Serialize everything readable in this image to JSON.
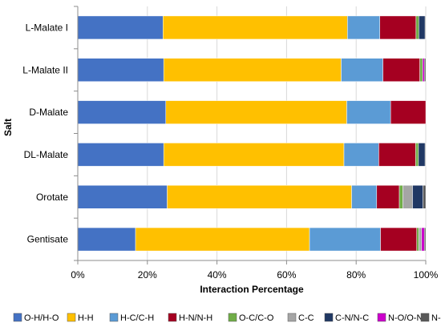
{
  "chart_data": {
    "type": "bar",
    "orientation": "horizontal",
    "stacked": true,
    "xlabel": "Interaction Percentage",
    "ylabel": "Salt",
    "xlim": [
      0,
      100
    ],
    "x_ticks": [
      "0%",
      "20%",
      "40%",
      "60%",
      "80%",
      "100%"
    ],
    "grid": "vertical",
    "legend_position": "bottom",
    "categories": [
      "L-Malate I",
      "L-Malate II",
      "D-Malate",
      "DL-Malate",
      "Orotate",
      "Gentisate"
    ],
    "series": [
      {
        "name": "O-H/H-O",
        "color": "#4472C4",
        "values": [
          24.5,
          24.7,
          25.3,
          24.7,
          25.7,
          16.6
        ]
      },
      {
        "name": "H-H",
        "color": "#FFC000",
        "values": [
          53.0,
          51.0,
          52.0,
          51.8,
          53.0,
          50.0
        ]
      },
      {
        "name": "H-C/C-H",
        "color": "#5B9BD5",
        "values": [
          9.3,
          12.0,
          12.6,
          10.0,
          7.2,
          20.4
        ]
      },
      {
        "name": "H-N/N-H",
        "color": "#A50021",
        "values": [
          10.4,
          10.6,
          10.1,
          10.6,
          6.5,
          10.4
        ]
      },
      {
        "name": "O-C/C-O",
        "color": "#70AD47",
        "values": [
          0.8,
          0.8,
          0.0,
          0.8,
          1.0,
          0.6
        ]
      },
      {
        "name": "C-C",
        "color": "#A5A5A5",
        "values": [
          0.0,
          0.0,
          0.0,
          0.0,
          2.8,
          0.8
        ]
      },
      {
        "name": "C-N/N-C",
        "color": "#203864",
        "values": [
          1.8,
          0.0,
          0.0,
          1.9,
          3.0,
          0.0
        ]
      },
      {
        "name": "N-O/O-N",
        "color": "#CC00CC",
        "values": [
          0.0,
          0.5,
          0.0,
          0.0,
          0.0,
          0.8
        ]
      },
      {
        "name": "N-N",
        "color": "#595959",
        "values": [
          0.2,
          0.4,
          0.0,
          0.2,
          0.8,
          0.4
        ]
      }
    ]
  }
}
